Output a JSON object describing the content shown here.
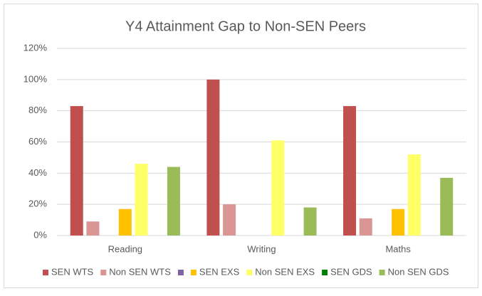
{
  "chart_data": {
    "type": "bar",
    "title": "Y4 Attainment Gap to Non-SEN Peers",
    "categories": [
      "Reading",
      "Writing",
      "Maths"
    ],
    "series": [
      {
        "name": "SEN WTS",
        "color": "#c0504d",
        "values": [
          83,
          100,
          83
        ]
      },
      {
        "name": "Non SEN WTS",
        "color": "#d99694",
        "values": [
          9,
          20,
          11
        ]
      },
      {
        "name": null,
        "color": "#8064a2",
        "values": [
          0,
          0,
          0
        ]
      },
      {
        "name": "SEN EXS",
        "color": "#ffc000",
        "values": [
          17,
          0,
          17
        ]
      },
      {
        "name": "Non SEN EXS",
        "color": "#ffff66",
        "values": [
          46,
          61,
          52
        ]
      },
      {
        "name": "SEN GDS",
        "color": "#008000",
        "values": [
          0,
          0,
          0
        ]
      },
      {
        "name": "Non SEN GDS",
        "color": "#9bbb59",
        "values": [
          44,
          18,
          37
        ]
      }
    ],
    "ylim": [
      0,
      120
    ],
    "yticks": [
      {
        "value": 0,
        "label": "0%"
      },
      {
        "value": 20,
        "label": "20%"
      },
      {
        "value": 40,
        "label": "40%"
      },
      {
        "value": 60,
        "label": "60%"
      },
      {
        "value": 80,
        "label": "80%"
      },
      {
        "value": 100,
        "label": "100%"
      },
      {
        "value": 120,
        "label": "120%"
      }
    ],
    "grid": true,
    "legend": "bottom"
  }
}
